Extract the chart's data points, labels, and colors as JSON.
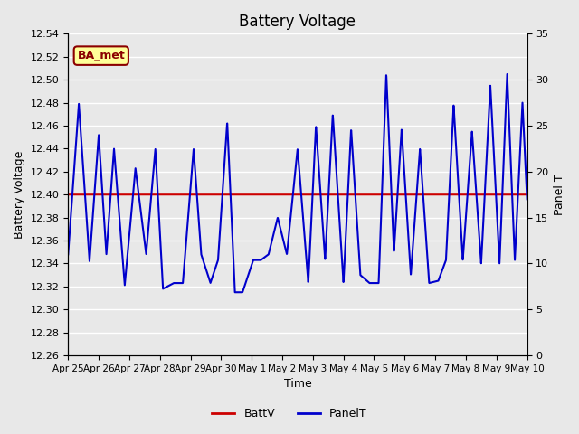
{
  "title": "Battery Voltage",
  "xlabel": "Time",
  "ylabel_left": "Battery Voltage",
  "ylabel_right": "Panel T",
  "ylim_left": [
    12.26,
    12.54
  ],
  "ylim_right": [
    0,
    35
  ],
  "yticks_left": [
    12.26,
    12.28,
    12.3,
    12.32,
    12.34,
    12.36,
    12.38,
    12.4,
    12.42,
    12.44,
    12.46,
    12.48,
    12.5,
    12.52,
    12.54
  ],
  "yticks_right": [
    0,
    5,
    10,
    15,
    20,
    25,
    30,
    35
  ],
  "background_color": "#e8e8e8",
  "grid_color": "#ffffff",
  "fig_facecolor": "#e8e8e8",
  "battv_color": "#cc0000",
  "panelt_color": "#0000cc",
  "battv_value": 12.4,
  "legend_label_battv": "BattV",
  "legend_label_panelt": "PanelT",
  "annotation_text": "BA_met",
  "x_tick_labels": [
    "Apr 25",
    "Apr 26",
    "Apr 27",
    "Apr 28",
    "Apr 29",
    "Apr 30",
    "May 1",
    "May 2",
    "May 3",
    "May 4",
    "May 5",
    "May 6",
    "May 7",
    "May 8",
    "May 9",
    "May 10"
  ],
  "num_days": 15,
  "peak_times": [
    0.35,
    1.0,
    1.5,
    2.2,
    2.85,
    3.45,
    4.1,
    4.65,
    5.2,
    5.7,
    6.3,
    6.85,
    7.5,
    8.1,
    8.65,
    9.25,
    9.85,
    10.4,
    10.9,
    11.5,
    12.1,
    12.6,
    13.2,
    13.8,
    14.35,
    14.85
  ],
  "peak_vals": [
    12.479,
    12.452,
    12.44,
    12.423,
    12.44,
    12.323,
    12.44,
    12.323,
    12.463,
    12.315,
    12.343,
    12.38,
    12.44,
    12.46,
    12.47,
    12.457,
    12.323,
    12.505,
    12.457,
    12.44,
    12.325,
    12.478,
    12.455,
    12.495,
    12.505,
    12.48
  ],
  "trough_times": [
    0.0,
    0.7,
    1.25,
    1.85,
    2.55,
    3.1,
    3.75,
    4.35,
    4.9,
    5.45,
    6.05,
    6.55,
    7.15,
    7.85,
    8.4,
    9.0,
    9.55,
    10.15,
    10.65,
    11.2,
    11.8,
    12.35,
    12.9,
    13.5,
    14.1,
    14.6,
    15.0
  ],
  "trough_vals": [
    12.348,
    12.342,
    12.348,
    12.321,
    12.348,
    12.318,
    12.323,
    12.348,
    12.343,
    12.315,
    12.343,
    12.348,
    12.348,
    12.323,
    12.343,
    12.323,
    12.33,
    12.323,
    12.35,
    12.33,
    12.323,
    12.343,
    12.343,
    12.34,
    12.34,
    12.343,
    12.396
  ]
}
